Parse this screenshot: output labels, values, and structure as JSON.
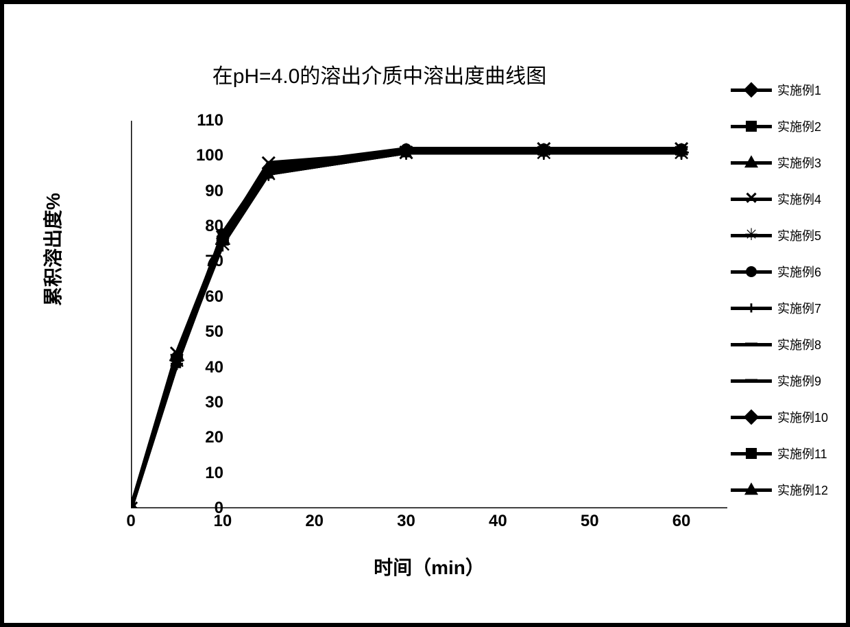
{
  "chart": {
    "type": "line",
    "title": "在pH=4.0的溶出介质中溶出度曲线图",
    "title_fontsize": 30,
    "xlabel": "时间（min）",
    "ylabel": "累积溶出度%",
    "label_fontsize": 28,
    "tick_fontsize": 24,
    "x_ticks": [
      0,
      10,
      20,
      30,
      40,
      50,
      60
    ],
    "y_ticks": [
      0,
      10,
      20,
      30,
      40,
      50,
      60,
      70,
      80,
      90,
      100,
      110
    ],
    "xlim": [
      0,
      65
    ],
    "ylim": [
      0,
      110
    ],
    "data_x": [
      0,
      5,
      10,
      15,
      30,
      45,
      60
    ],
    "line_color": "#000000",
    "line_width": 6,
    "background_color": "#ffffff",
    "grid": false,
    "series": [
      {
        "label": "实施例1",
        "marker": "diamond",
        "values": [
          0,
          42,
          77,
          96,
          101,
          102,
          102
        ]
      },
      {
        "label": "实施例2",
        "marker": "square",
        "values": [
          0,
          41,
          78,
          95,
          101,
          101,
          101
        ]
      },
      {
        "label": "实施例3",
        "marker": "triangle",
        "values": [
          0,
          43,
          76,
          96,
          102,
          102,
          102
        ]
      },
      {
        "label": "实施例4",
        "marker": "x",
        "values": [
          0,
          44,
          77,
          98,
          101,
          102,
          102
        ]
      },
      {
        "label": "实施例5",
        "marker": "star",
        "values": [
          0,
          42,
          75,
          95,
          101,
          101,
          101
        ]
      },
      {
        "label": "实施例6",
        "marker": "circle",
        "values": [
          0,
          43,
          77,
          96,
          102,
          102,
          102
        ]
      },
      {
        "label": "实施例7",
        "marker": "plus",
        "values": [
          0,
          41,
          76,
          95,
          101,
          101,
          101
        ]
      },
      {
        "label": "实施例8",
        "marker": "dash",
        "values": [
          0,
          42,
          77,
          96,
          101,
          102,
          102
        ]
      },
      {
        "label": "实施例9",
        "marker": "dash",
        "values": [
          0,
          43,
          76,
          95,
          101,
          101,
          101
        ]
      },
      {
        "label": "实施例10",
        "marker": "diamond",
        "values": [
          0,
          42,
          78,
          97,
          102,
          102,
          102
        ]
      },
      {
        "label": "实施例11",
        "marker": "square",
        "values": [
          0,
          41,
          77,
          96,
          101,
          101,
          101
        ]
      },
      {
        "label": "实施例12",
        "marker": "triangle",
        "values": [
          0,
          43,
          76,
          95,
          101,
          102,
          102
        ]
      }
    ],
    "legend_fontsize": 18,
    "legend_line_width": 5,
    "legend_line_length": 60
  }
}
